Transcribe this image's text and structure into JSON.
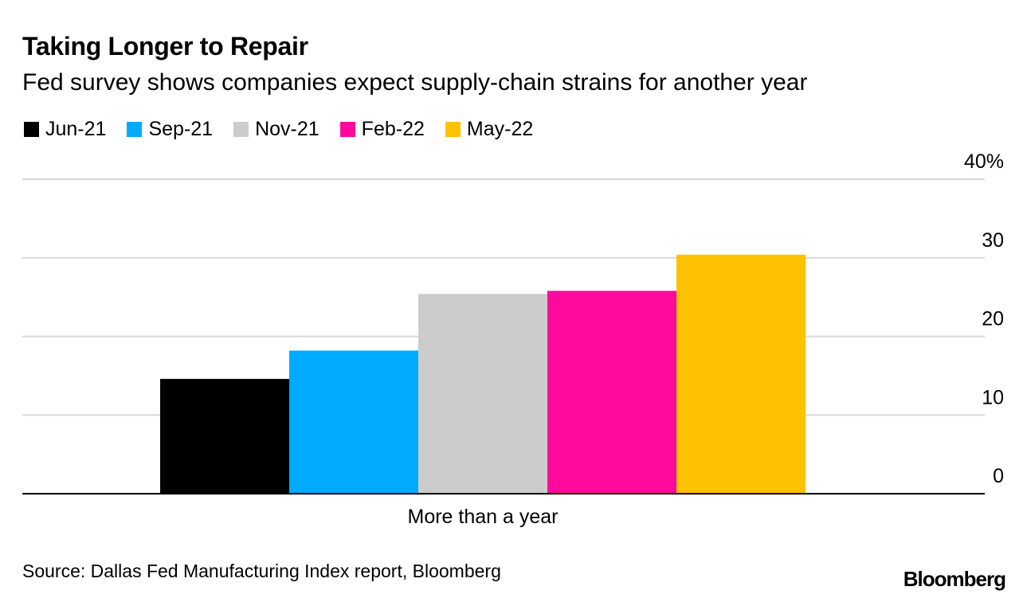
{
  "title": "Taking Longer to Repair",
  "subtitle": "Fed survey shows companies expect supply-chain strains for another year",
  "source": "Source: Dallas Fed Manufacturing Index report, Bloomberg",
  "brand": "Bloomberg",
  "chart_data": {
    "type": "bar",
    "categories": [
      "More than a year"
    ],
    "series": [
      {
        "name": "Jun-21",
        "color": "#000000",
        "values": [
          14.6
        ]
      },
      {
        "name": "Sep-21",
        "color": "#00aaff",
        "values": [
          18.2
        ]
      },
      {
        "name": "Nov-21",
        "color": "#cccccc",
        "values": [
          25.4
        ]
      },
      {
        "name": "Feb-22",
        "color": "#ff0a9c",
        "values": [
          25.8
        ]
      },
      {
        "name": "May-22",
        "color": "#ffc200",
        "values": [
          30.4
        ]
      }
    ],
    "ylim": [
      0,
      40
    ],
    "yticks": [
      0,
      10,
      20,
      30,
      40
    ],
    "ytick_labels": [
      "0",
      "10",
      "20",
      "30",
      "40%"
    ],
    "y_axis_position": "right",
    "grid": true,
    "legend_position": "top-left"
  }
}
